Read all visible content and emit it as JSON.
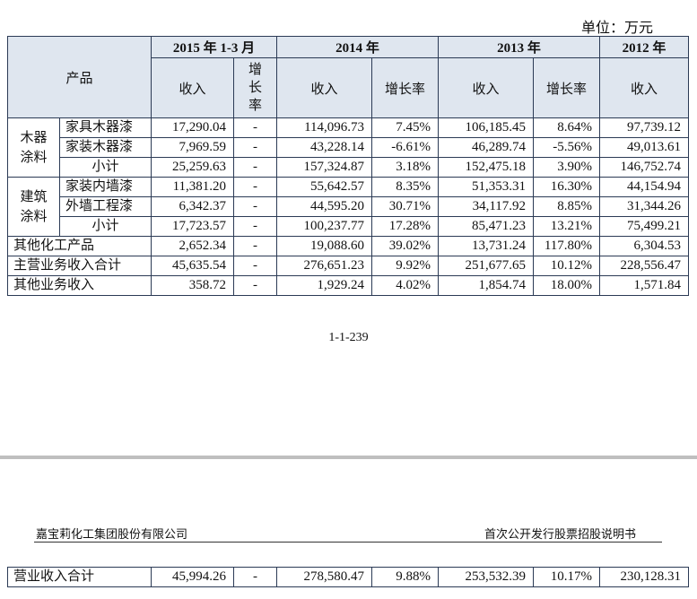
{
  "header": {
    "unit": "单位：万元"
  },
  "table": {
    "product_header": "产品",
    "periods": [
      "2015 年 1-3 月",
      "2014 年",
      "2013 年",
      "2012 年"
    ],
    "subheaders": [
      "收入",
      "增长率",
      "收入",
      "增长率",
      "收入",
      "增长率",
      "收入"
    ],
    "groups": [
      {
        "label": "木器涂料",
        "rows": [
          {
            "name": "家具木器漆",
            "cells": [
              "17,290.04",
              "-",
              "114,096.73",
              "7.45%",
              "106,185.45",
              "8.64%",
              "97,739.12"
            ]
          },
          {
            "name": "家装木器漆",
            "cells": [
              "7,969.59",
              "-",
              "43,228.14",
              "-6.61%",
              "46,289.74",
              "-5.56%",
              "49,013.61"
            ]
          },
          {
            "name": "小计",
            "cells": [
              "25,259.63",
              "-",
              "157,324.87",
              "3.18%",
              "152,475.18",
              "3.90%",
              "146,752.74"
            ]
          }
        ]
      },
      {
        "label": "建筑涂料",
        "rows": [
          {
            "name": "家装内墙漆",
            "cells": [
              "11,381.20",
              "-",
              "55,642.57",
              "8.35%",
              "51,353.31",
              "16.30%",
              "44,154.94"
            ]
          },
          {
            "name": "外墙工程漆",
            "cells": [
              "6,342.37",
              "-",
              "44,595.20",
              "30.71%",
              "34,117.92",
              "8.85%",
              "31,344.26"
            ]
          },
          {
            "name": "小计",
            "cells": [
              "17,723.57",
              "-",
              "100,237.77",
              "17.28%",
              "85,471.23",
              "13.21%",
              "75,499.21"
            ]
          }
        ]
      }
    ],
    "rows": [
      {
        "name": "其他化工产品",
        "cells": [
          "2,652.34",
          "-",
          "19,088.60",
          "39.02%",
          "13,731.24",
          "117.80%",
          "6,304.53"
        ]
      },
      {
        "name": "主营业务收入合计",
        "cells": [
          "45,635.54",
          "-",
          "276,651.23",
          "9.92%",
          "251,677.65",
          "10.12%",
          "228,556.47"
        ]
      },
      {
        "name": "其他业务收入",
        "cells": [
          "358.72",
          "-",
          "1,929.24",
          "4.02%",
          "1,854.74",
          "18.00%",
          "1,571.84"
        ]
      }
    ]
  },
  "page_number": "1-1-239",
  "footer": {
    "company": "嘉宝莉化工集团股份有限公司",
    "doc_title": "首次公开发行股票招股说明书"
  },
  "continued_table": {
    "rows": [
      {
        "name": "营业收入合计",
        "cells": [
          "45,994.26",
          "-",
          "278,580.47",
          "9.88%",
          "253,532.39",
          "10.17%",
          "230,128.31"
        ]
      }
    ]
  }
}
